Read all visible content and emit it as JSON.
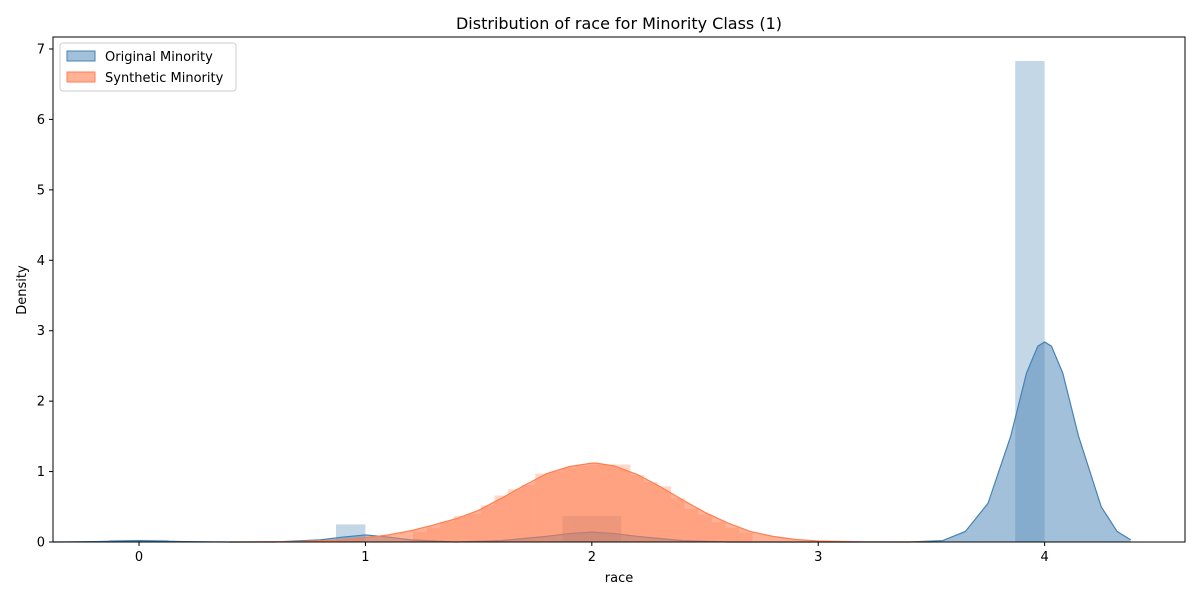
{
  "chart_data": {
    "type": "area",
    "title": "Distribution of race for Minority Class (1)",
    "xlabel": "race",
    "ylabel": "Density",
    "xlim": [
      -0.38,
      4.62
    ],
    "ylim": [
      0,
      7.17
    ],
    "xticks": [
      "0",
      "1",
      "2",
      "3",
      "4"
    ],
    "yticks": [
      "0",
      "1",
      "2",
      "3",
      "4",
      "5",
      "6",
      "7"
    ],
    "grid": false,
    "legend_position": "top-left",
    "series": [
      {
        "name": "Original Minority",
        "color": "#4682b4",
        "fill_opacity": 0.5,
        "histogram": [
          {
            "x0": -0.13,
            "x1": 0.13,
            "value": 0.03
          },
          {
            "x0": 0.87,
            "x1": 1.0,
            "value": 0.25
          },
          {
            "x0": 1.87,
            "x1": 2.13,
            "value": 0.37
          },
          {
            "x0": 3.87,
            "x1": 4.0,
            "value": 6.83
          }
        ],
        "kde": {
          "x": [
            -0.38,
            -0.2,
            0.0,
            0.2,
            0.4,
            0.6,
            0.8,
            0.9,
            1.0,
            1.1,
            1.2,
            1.4,
            1.6,
            1.8,
            1.9,
            2.0,
            2.1,
            2.2,
            2.4,
            2.6,
            3.0,
            3.4,
            3.55,
            3.65,
            3.75,
            3.85,
            3.92,
            3.97,
            4.0,
            4.03,
            4.08,
            4.15,
            4.25,
            4.32,
            4.38
          ],
          "y": [
            0.0,
            0.005,
            0.02,
            0.005,
            0.0,
            0.0,
            0.03,
            0.07,
            0.1,
            0.07,
            0.03,
            0.0,
            0.02,
            0.08,
            0.12,
            0.14,
            0.12,
            0.08,
            0.02,
            0.0,
            0.0,
            0.0,
            0.02,
            0.15,
            0.55,
            1.5,
            2.4,
            2.78,
            2.84,
            2.78,
            2.4,
            1.5,
            0.5,
            0.15,
            0.03
          ]
        }
      },
      {
        "name": "Synthetic Minority",
        "color": "#ff7f50",
        "fill_opacity": 0.6,
        "histogram": [
          {
            "x0": 1.21,
            "x1": 1.27,
            "value": 0.14
          },
          {
            "x0": 1.27,
            "x1": 1.33,
            "value": 0.2
          },
          {
            "x0": 1.33,
            "x1": 1.39,
            "value": 0.29
          },
          {
            "x0": 1.39,
            "x1": 1.45,
            "value": 0.37
          },
          {
            "x0": 1.45,
            "x1": 1.51,
            "value": 0.4
          },
          {
            "x0": 1.51,
            "x1": 1.57,
            "value": 0.52
          },
          {
            "x0": 1.57,
            "x1": 1.63,
            "value": 0.66
          },
          {
            "x0": 1.63,
            "x1": 1.69,
            "value": 0.75
          },
          {
            "x0": 1.69,
            "x1": 1.75,
            "value": 0.81
          },
          {
            "x0": 1.75,
            "x1": 1.81,
            "value": 0.97
          },
          {
            "x0": 1.81,
            "x1": 1.87,
            "value": 1.0
          },
          {
            "x0": 1.87,
            "x1": 1.93,
            "value": 1.05
          },
          {
            "x0": 1.93,
            "x1": 1.99,
            "value": 1.08
          },
          {
            "x0": 1.99,
            "x1": 2.05,
            "value": 1.1
          },
          {
            "x0": 2.05,
            "x1": 2.11,
            "value": 1.1
          },
          {
            "x0": 2.11,
            "x1": 2.17,
            "value": 1.1
          },
          {
            "x0": 2.17,
            "x1": 2.23,
            "value": 0.95
          },
          {
            "x0": 2.23,
            "x1": 2.29,
            "value": 0.85
          },
          {
            "x0": 2.29,
            "x1": 2.35,
            "value": 0.79
          },
          {
            "x0": 2.35,
            "x1": 2.41,
            "value": 0.62
          },
          {
            "x0": 2.41,
            "x1": 2.47,
            "value": 0.47
          },
          {
            "x0": 2.47,
            "x1": 2.53,
            "value": 0.39
          },
          {
            "x0": 2.53,
            "x1": 2.59,
            "value": 0.28
          },
          {
            "x0": 2.59,
            "x1": 2.65,
            "value": 0.2
          },
          {
            "x0": 2.65,
            "x1": 2.71,
            "value": 0.13
          }
        ],
        "kde": {
          "x": [
            0.4,
            0.7,
            0.9,
            1.0,
            1.1,
            1.2,
            1.3,
            1.4,
            1.5,
            1.6,
            1.7,
            1.8,
            1.9,
            2.0,
            2.02,
            2.1,
            2.2,
            2.3,
            2.4,
            2.5,
            2.6,
            2.7,
            2.8,
            2.9,
            3.0,
            3.2,
            3.5
          ],
          "y": [
            0.0,
            0.005,
            0.03,
            0.06,
            0.1,
            0.16,
            0.24,
            0.33,
            0.45,
            0.62,
            0.8,
            0.97,
            1.07,
            1.12,
            1.12,
            1.08,
            0.96,
            0.79,
            0.6,
            0.42,
            0.27,
            0.15,
            0.08,
            0.035,
            0.015,
            0.003,
            0.0
          ]
        }
      }
    ]
  }
}
